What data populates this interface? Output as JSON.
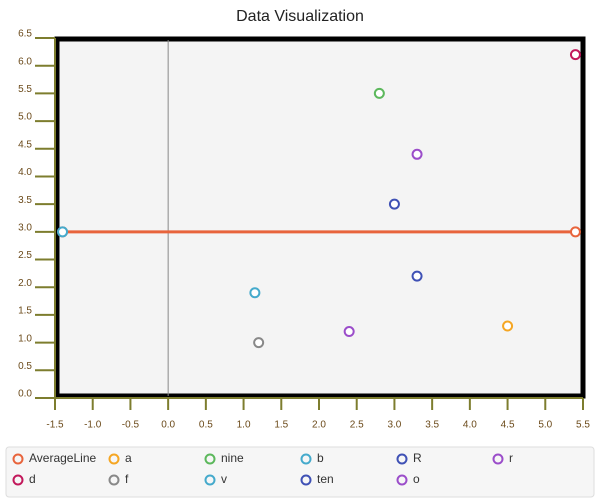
{
  "chart_data": {
    "type": "scatter",
    "title": "Data Visualization",
    "xlim": [
      -1.5,
      5.5
    ],
    "ylim": [
      0,
      6.5
    ],
    "xticks": [
      -1.5,
      {
        "value": -1,
        "label": "-1.0"
      },
      -0.5,
      {
        "value": 0,
        "label": "0.0"
      },
      0.5,
      {
        "value": 1,
        "label": "1.0"
      },
      1.5,
      {
        "value": 2,
        "label": "2.0"
      },
      2.5,
      {
        "value": 3,
        "label": "3.0"
      },
      3.5,
      {
        "value": 4,
        "label": "4.0"
      },
      4.5,
      {
        "value": 5,
        "label": "5.0"
      },
      5.5
    ],
    "yticks": [
      {
        "value": 0,
        "label": "0.0"
      },
      0.5,
      {
        "value": 1,
        "label": "1.0"
      },
      1.5,
      {
        "value": 2,
        "label": "2.0"
      },
      2.5,
      {
        "value": 3,
        "label": "3.0"
      },
      3.5,
      {
        "value": 4,
        "label": "4.0"
      },
      4.5,
      {
        "value": 5,
        "label": "5.0"
      },
      5.5,
      {
        "value": 6,
        "label": "6.0"
      },
      6.5
    ],
    "series": [
      {
        "name": "AverageLine",
        "color": "#e8643c",
        "line": true,
        "x": [
          -1.4,
          5.4
        ],
        "values": [
          3,
          3
        ]
      },
      {
        "name": "a",
        "color": "#f5a623",
        "x": [
          4.5
        ],
        "values": [
          1.3
        ]
      },
      {
        "name": "nine",
        "color": "#5cb85c",
        "x": [
          2.8
        ],
        "values": [
          5.5
        ]
      },
      {
        "name": "b",
        "color": "#45aacc",
        "x": [
          1.15
        ],
        "values": [
          1.9
        ]
      },
      {
        "name": "R",
        "color": "#3f51b5",
        "x": [
          3.0
        ],
        "values": [
          3.5
        ]
      },
      {
        "name": "r",
        "color": "#9b4dca",
        "x": [
          3.3
        ],
        "values": [
          4.4
        ]
      },
      {
        "name": "d",
        "color": "#c2185b",
        "x": [
          5.4
        ],
        "values": [
          6.2
        ]
      },
      {
        "name": "f",
        "color": "#888888",
        "x": [
          1.2
        ],
        "values": [
          1.0
        ]
      },
      {
        "name": "v",
        "color": "#45aacc",
        "x": [
          -1.4
        ],
        "values": [
          3.0
        ]
      },
      {
        "name": "ten",
        "color": "#3f51b5",
        "x": [
          3.3
        ],
        "values": [
          2.2
        ]
      },
      {
        "name": "o",
        "color": "#9b4dca",
        "x": [
          2.4
        ],
        "values": [
          1.2
        ]
      }
    ]
  }
}
